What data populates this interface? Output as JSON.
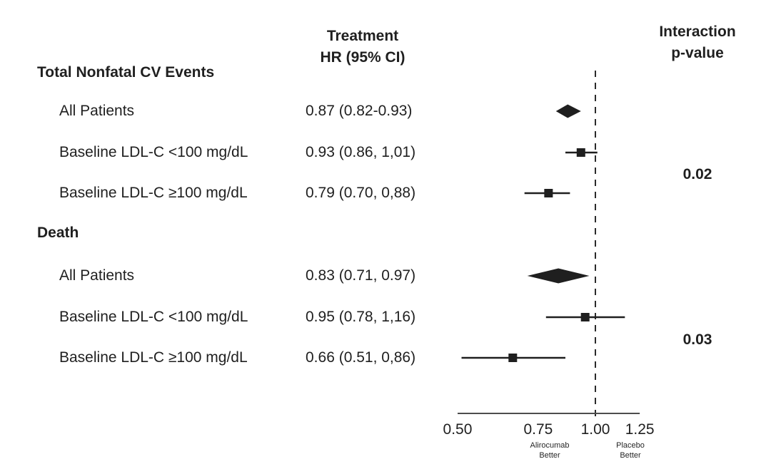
{
  "figure": {
    "col1_header": {
      "line1": "Treatment",
      "line2": "HR (95% CI)"
    },
    "col2_header": {
      "line1": "Interaction",
      "line2": "p-value"
    }
  },
  "chart_data": {
    "type": "forest",
    "scale": "log",
    "x_axis": {
      "ticks": [
        "0.50",
        "0.75",
        "1.00",
        "1.25"
      ],
      "tick_values": [
        0.5,
        0.75,
        1.0,
        1.25
      ],
      "range": [
        0.5,
        1.25
      ],
      "reference_line": 1.0,
      "left_direction_label": [
        "Alirocumab",
        "Better"
      ],
      "right_direction_label": [
        "Placebo",
        "Better"
      ]
    },
    "groups": [
      {
        "section": "Total Nonfatal CV Events",
        "interaction_p": "0.02",
        "rows": [
          {
            "label": "All Patients",
            "hr_text": "0.87 (0.82-0.93)",
            "hr": 0.87,
            "ci_low": 0.82,
            "ci_high": 0.93,
            "marker": "diamond"
          },
          {
            "label": "Baseline LDL-C <100 mg/dL",
            "hr_text": "0.93 (0.86, 1,01)",
            "hr": 0.93,
            "ci_low": 0.86,
            "ci_high": 1.01,
            "marker": "square"
          },
          {
            "label": "Baseline LDL-C ≥100 mg/dL",
            "hr_text": "0.79 (0.70, 0,88)",
            "hr": 0.79,
            "ci_low": 0.7,
            "ci_high": 0.88,
            "marker": "square"
          }
        ]
      },
      {
        "section": "Death",
        "interaction_p": "0.03",
        "rows": [
          {
            "label": "All Patients",
            "hr_text": "0.83 (0.71, 0.97)",
            "hr": 0.83,
            "ci_low": 0.71,
            "ci_high": 0.97,
            "marker": "diamond"
          },
          {
            "label": "Baseline LDL-C <100 mg/dL",
            "hr_text": "0.95 (0.78, 1,16)",
            "hr": 0.95,
            "ci_low": 0.78,
            "ci_high": 1.16,
            "marker": "square"
          },
          {
            "label": "Baseline LDL-C ≥100 mg/dL",
            "hr_text": "0.66 (0.51, 0,86)",
            "hr": 0.66,
            "ci_low": 0.51,
            "ci_high": 0.86,
            "marker": "square"
          }
        ]
      }
    ],
    "colors": {
      "marker": "#1f1f1f",
      "text": "#1f1f1f",
      "axis": "#4d4d4d",
      "reference_line": "#2b2b2b",
      "background": "#ffffff"
    }
  }
}
